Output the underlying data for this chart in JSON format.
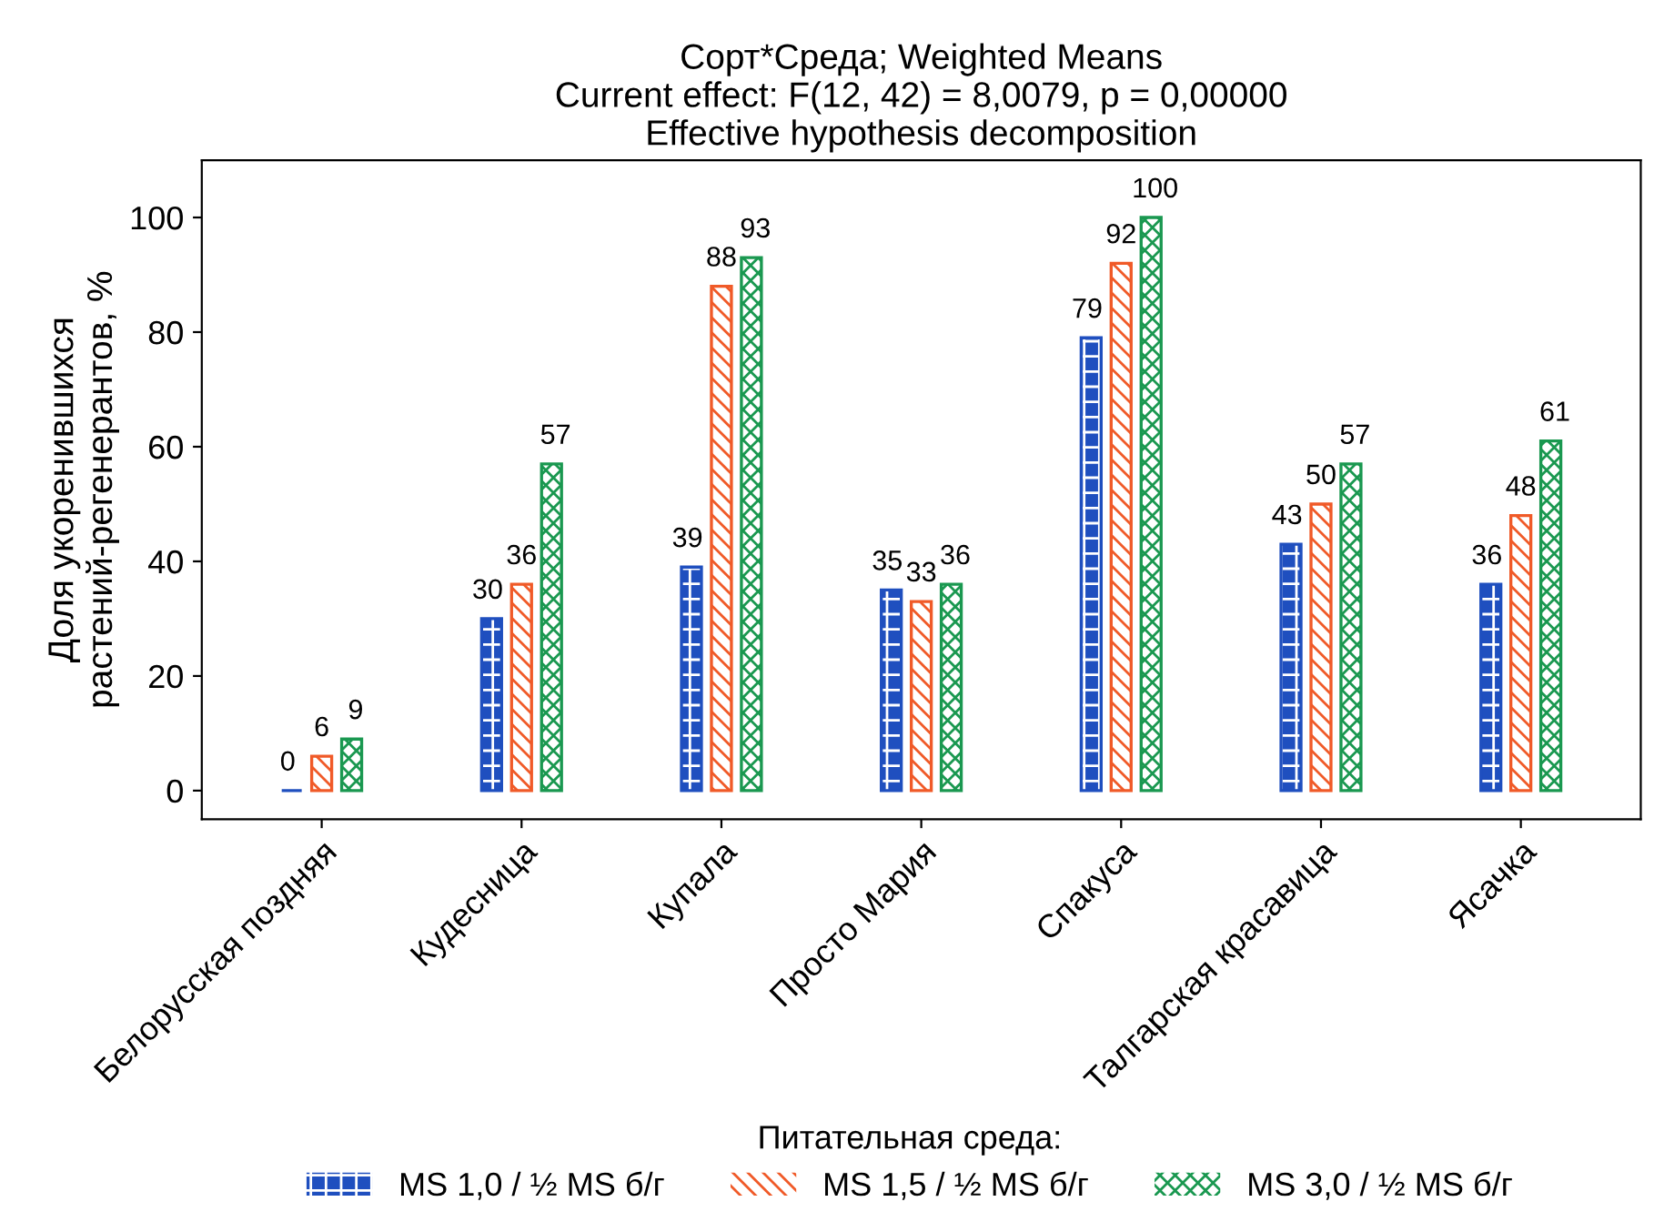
{
  "chart_data": {
    "type": "bar",
    "title": "Сорт*Среда; Weighted Means\nCurrent effect: F(12, 42) = 8,0079, p = 0,00000\nEffective hypothesis decomposition",
    "ylabel": "Доля укоренившихся\nрастений-регенерантов, %",
    "legend_title": "Питательная среда:",
    "categories": [
      "Белорусская поздняя",
      "Кудесница",
      "Купала",
      "Просто Мария",
      "Спакуса",
      "Талгарская красавица",
      "Ясачка"
    ],
    "series": [
      {
        "name": "MS 1,0 / ½ MS б/г",
        "color": "#1f4fbf",
        "values": [
          0,
          30,
          39,
          35,
          79,
          43,
          36
        ]
      },
      {
        "name": "MS 1,5 / ½ MS б/г",
        "color": "#f05a28",
        "values": [
          6,
          36,
          88,
          33,
          92,
          50,
          48
        ]
      },
      {
        "name": "MS 3,0 / ½ MS б/г",
        "color": "#1a9850",
        "values": [
          9,
          57,
          93,
          36,
          100,
          57,
          61
        ]
      }
    ],
    "ylim": [
      -5,
      110
    ],
    "yticks": [
      0,
      20,
      40,
      60,
      80,
      100
    ],
    "grid": false,
    "legend": "bottom",
    "data_labels": true
  }
}
